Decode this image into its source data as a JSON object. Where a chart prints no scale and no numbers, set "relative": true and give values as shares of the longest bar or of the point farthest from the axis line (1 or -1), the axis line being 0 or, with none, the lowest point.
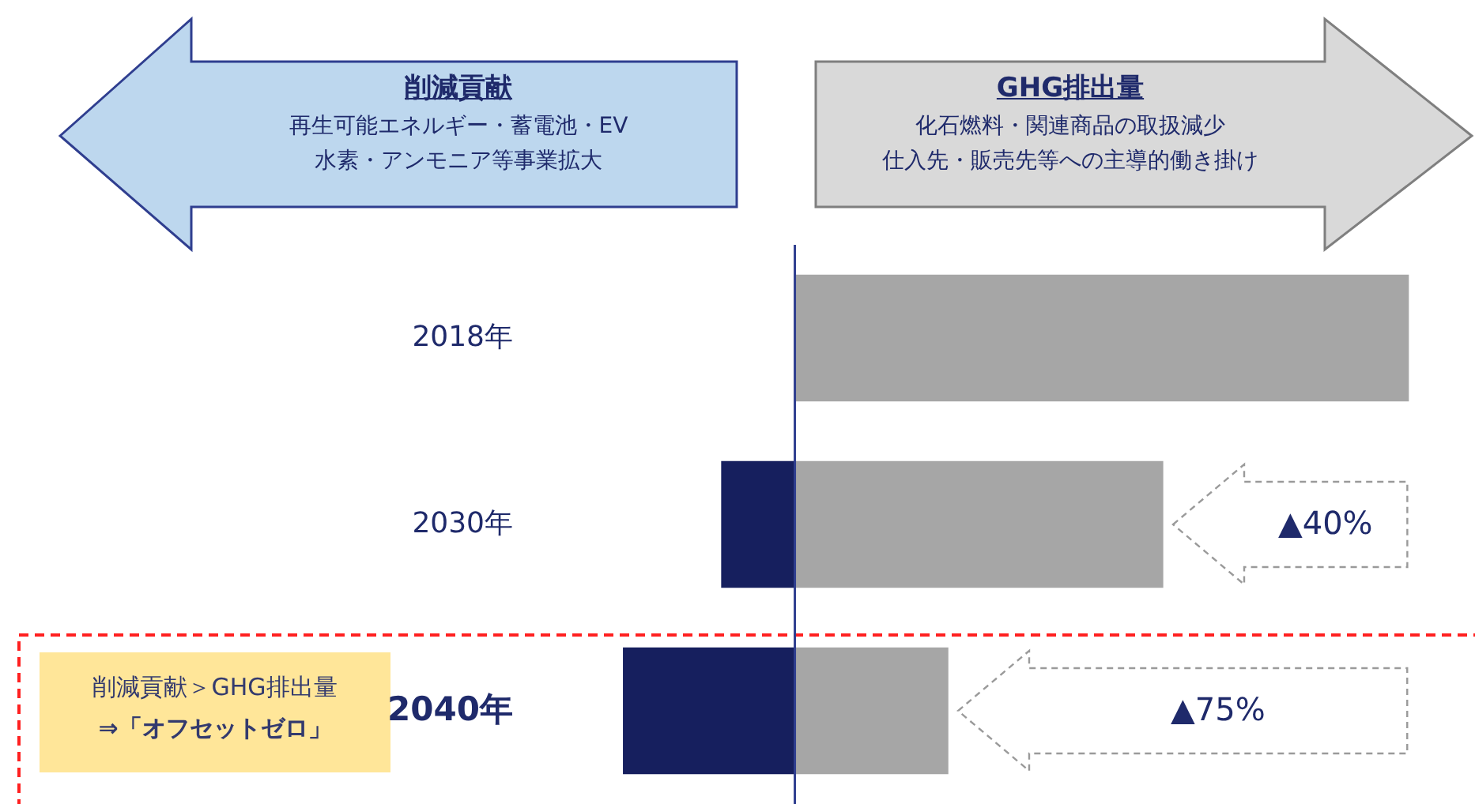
{
  "chart_data": {
    "type": "bar",
    "orientation": "horizontal",
    "relative": true,
    "stacked": true,
    "categories": [
      "2018年",
      "2030年",
      "2040年"
    ],
    "series": [
      {
        "color": "#161f5e",
        "values": [
          null,
          -0.12,
          -0.28
        ]
      },
      {
        "color": "#a6a6a6",
        "values": [
          1,
          0.6,
          0.25
        ]
      }
    ],
    "ref_lines": [
      {
        "axis": "x",
        "value": 0,
        "color": "#2f3e8f"
      }
    ],
    "annotations": [
      "削減貢献",
      "再生可能エネルギー・蓄電池・EV",
      "水素・アンモニア等事業拡大",
      "GHG排出量",
      "化石燃料・関連商品の取扱減少",
      "仕入先・販売先等への主導的働き掛け",
      "削減貢献＞GHG排出量",
      "⇒「オフセットゼロ」",
      "▲40%",
      "▲75%"
    ]
  }
}
